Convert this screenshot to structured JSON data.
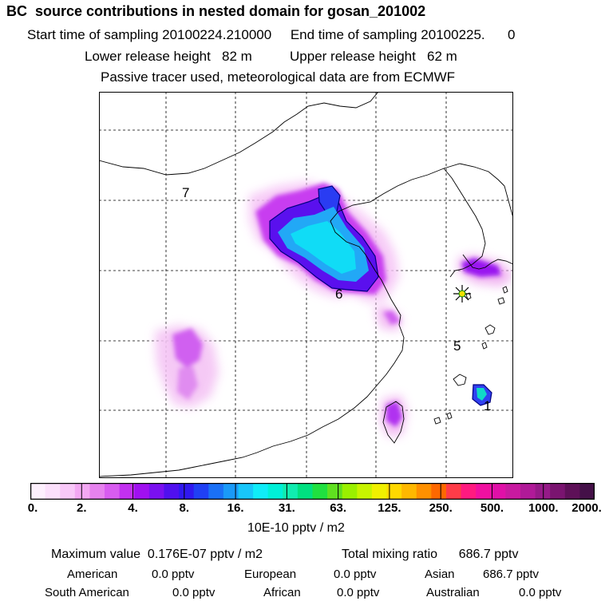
{
  "header": {
    "title": "BC  source contributions in nested domain for gosan_201002",
    "line2": "Start time of sampling 20100224.210000     End time of sampling 20100225.      0",
    "line3": "Lower release height   82 m          Upper release height   62 m",
    "line4": "Passive tracer used, meteorological data are from ECMWF"
  },
  "map": {
    "region_labels": [
      "7",
      "6",
      "5",
      "1"
    ]
  },
  "colorbar": {
    "tick_labels": [
      "0.",
      "2.",
      "4.",
      "8.",
      "16.",
      "31.",
      "63.",
      "125.",
      "250.",
      "500.",
      "1000.",
      "2000."
    ],
    "colors": [
      "#fdf0fd",
      "#fbe0fb",
      "#f8c8f8",
      "#f3a8f3",
      "#e682ee",
      "#d85cf0",
      "#c230f0",
      "#a010f0",
      "#7a10f0",
      "#5010ee",
      "#3018f0",
      "#2040f4",
      "#1a70f6",
      "#1a9af8",
      "#18c6fa",
      "#10ecf8",
      "#00f0d8",
      "#10ecb0",
      "#00e080",
      "#20e040",
      "#60e020",
      "#9af000",
      "#c8f400",
      "#f0f000",
      "#ffd800",
      "#ffb800",
      "#ff9000",
      "#ff6800",
      "#ff3c48",
      "#ff1a80",
      "#f010a0",
      "#e010a8",
      "#c81aa0",
      "#b01a98",
      "#961a88",
      "#7a1470",
      "#5e1058",
      "#441048"
    ],
    "units": "10E-10 pptv / m2"
  },
  "summary": {
    "max_value": "Maximum value  0.176E-07 pptv / m2",
    "total": "Total mixing ratio      686.7 pptv"
  },
  "regions": {
    "american": "American",
    "american_val": "0.0 pptv",
    "european": "European",
    "european_val": "0.0 pptv",
    "asian": "Asian",
    "asian_val": "686.7 pptv",
    "south_american": "South American",
    "south_american_val": "0.0 pptv",
    "african": "African",
    "african_val": "0.0 pptv",
    "australian": "Australian",
    "australian_val": "0.0 pptv"
  }
}
